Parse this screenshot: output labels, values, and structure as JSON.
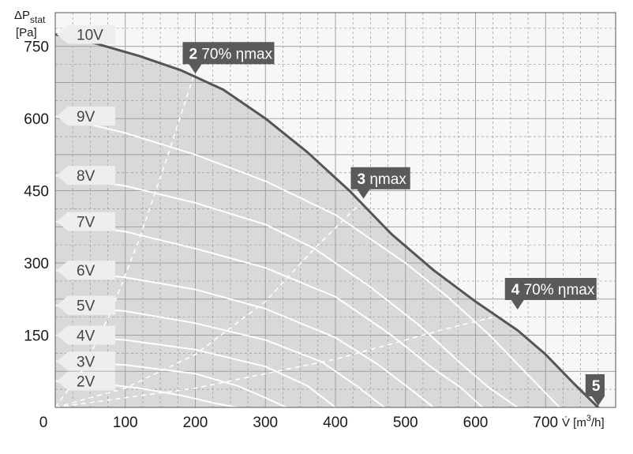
{
  "chart_data": {
    "type": "line",
    "y_axis_label": "ΔP",
    "y_axis_label_sub": "stat",
    "y_axis_unit": "[Pa]",
    "x_axis_label_prefix": "V̇ [m",
    "x_axis_label_sup": "3",
    "x_axis_label_suffix": "/h]",
    "xlim": [
      0,
      800
    ],
    "ylim": [
      0,
      820
    ],
    "x_ticks": [
      "0",
      "100",
      "200",
      "300",
      "400",
      "500",
      "600",
      "700"
    ],
    "y_ticks": [
      "150",
      "300",
      "450",
      "600",
      "750"
    ],
    "grid": true,
    "series": [
      {
        "name": "10V",
        "x": [
          0,
          60,
          120,
          180,
          240,
          300,
          360,
          420,
          480,
          540,
          600,
          660,
          700,
          740,
          775
        ],
        "y": [
          775,
          755,
          730,
          700,
          660,
          600,
          530,
          450,
          360,
          285,
          220,
          160,
          110,
          50,
          0
        ]
      },
      {
        "name": "9V",
        "x": [
          0,
          100,
          200,
          300,
          400,
          500,
          560,
          620,
          680,
          720
        ],
        "y": [
          605,
          570,
          525,
          470,
          400,
          300,
          230,
          150,
          60,
          0
        ]
      },
      {
        "name": "8V",
        "x": [
          0,
          100,
          200,
          300,
          370,
          450,
          520,
          580,
          620,
          660
        ],
        "y": [
          482,
          460,
          425,
          380,
          330,
          250,
          170,
          90,
          40,
          0
        ]
      },
      {
        "name": "7V",
        "x": [
          0,
          100,
          200,
          300,
          400,
          480,
          540,
          580,
          610
        ],
        "y": [
          386,
          365,
          330,
          290,
          230,
          150,
          80,
          40,
          0
        ]
      },
      {
        "name": "6V",
        "x": [
          0,
          100,
          200,
          300,
          400,
          460,
          510,
          540
        ],
        "y": [
          285,
          270,
          245,
          205,
          145,
          90,
          35,
          0
        ]
      },
      {
        "name": "5V",
        "x": [
          0,
          100,
          200,
          300,
          380,
          430,
          470
        ],
        "y": [
          212,
          200,
          175,
          140,
          95,
          45,
          0
        ]
      },
      {
        "name": "4V",
        "x": [
          0,
          100,
          200,
          300,
          360,
          400
        ],
        "y": [
          150,
          140,
          120,
          85,
          45,
          0
        ]
      },
      {
        "name": "3V",
        "x": [
          0,
          100,
          200,
          260,
          300,
          330
        ],
        "y": [
          96,
          88,
          70,
          45,
          20,
          0
        ]
      },
      {
        "name": "2V",
        "x": [
          0,
          60,
          120,
          180,
          230,
          260
        ],
        "y": [
          55,
          50,
          40,
          25,
          8,
          0
        ]
      }
    ],
    "efficiency_lines": [
      {
        "x": [
          0,
          40,
          80,
          120,
          160,
          200
        ],
        "y": [
          0,
          80,
          200,
          350,
          520,
          700
        ]
      },
      {
        "x": [
          0,
          100,
          200,
          300,
          370,
          440
        ],
        "y": [
          0,
          40,
          110,
          220,
          330,
          430
        ]
      },
      {
        "x": [
          0,
          200,
          400,
          550,
          660
        ],
        "y": [
          0,
          40,
          100,
          160,
          200
        ]
      }
    ],
    "points": [
      {
        "number": "2",
        "label": "70% ηmax",
        "x": 200,
        "y": 690
      },
      {
        "number": "3",
        "label": "ηmax",
        "x": 440,
        "y": 430
      },
      {
        "number": "4",
        "label": "70% ηmax",
        "x": 660,
        "y": 200
      },
      {
        "number": "5",
        "label": "",
        "x": 775,
        "y": 0
      }
    ]
  }
}
